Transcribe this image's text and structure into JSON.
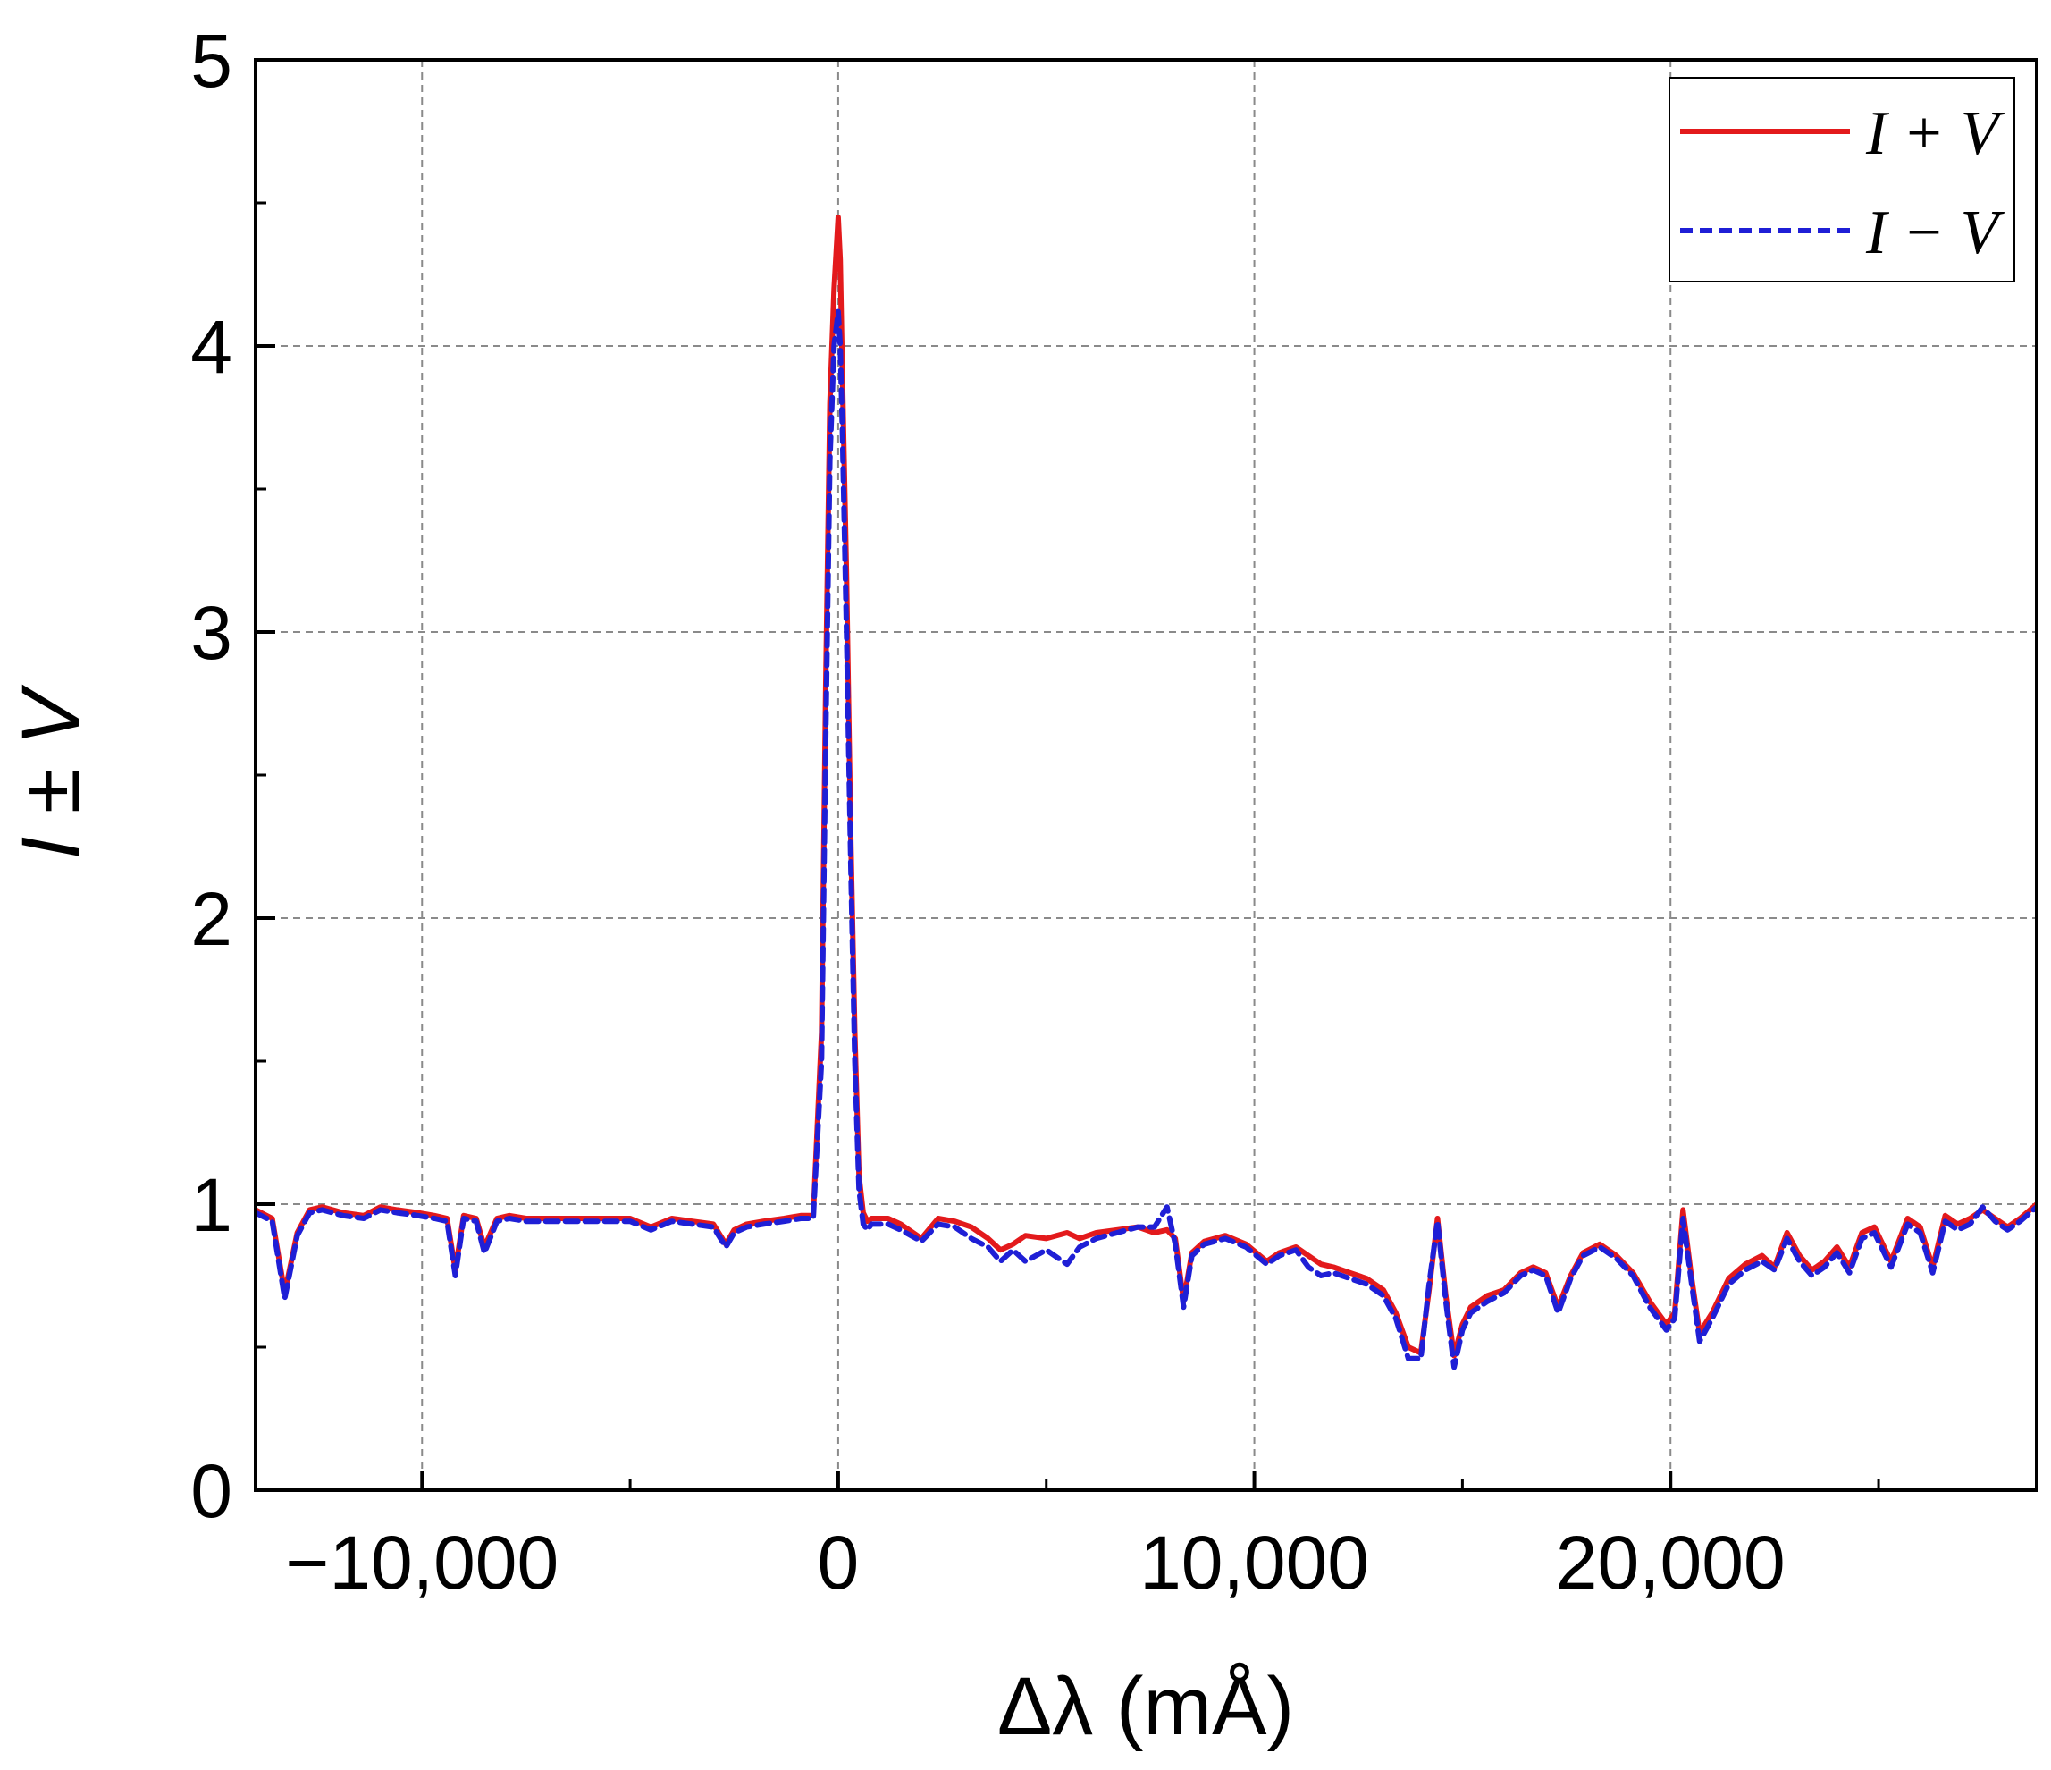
{
  "chart_data": {
    "type": "line",
    "title": "",
    "xlabel": "Δλ (mÅ)",
    "ylabel": "I ± V",
    "xlim": [
      -14000,
      28800
    ],
    "ylim": [
      0,
      5
    ],
    "x_ticks": [
      -10000,
      0,
      10000,
      20000
    ],
    "x_tick_labels": [
      "−10,000",
      "0",
      "10,000",
      "20,000"
    ],
    "y_ticks": [
      0,
      1,
      2,
      3,
      4,
      5
    ],
    "y_tick_labels": [
      "0",
      "1",
      "2",
      "3",
      "4",
      "5"
    ],
    "grid": true,
    "legend_position": "top-right",
    "colors": {
      "I_plus_V": "#e31a1c",
      "I_minus_V": "#1f1fd6"
    },
    "series": [
      {
        "name": "I + V",
        "style": "solid",
        "x": [
          -14000,
          -13600,
          -13300,
          -13000,
          -12700,
          -12400,
          -11900,
          -11400,
          -11000,
          -10600,
          -10100,
          -9700,
          -9400,
          -9200,
          -9000,
          -8700,
          -8500,
          -8200,
          -7900,
          -7500,
          -7000,
          -6000,
          -5000,
          -4500,
          -4000,
          -3500,
          -3000,
          -2700,
          -2500,
          -2200,
          -1800,
          -1300,
          -900,
          -600,
          -400,
          -300,
          -200,
          -100,
          0,
          50,
          100,
          200,
          300,
          400,
          500,
          600,
          700,
          800,
          1000,
          1200,
          1500,
          2000,
          2400,
          2800,
          3200,
          3600,
          3900,
          4200,
          4500,
          5000,
          5500,
          5800,
          6200,
          6700,
          7200,
          7600,
          7900,
          8100,
          8300,
          8500,
          8800,
          9300,
          9800,
          10300,
          10600,
          11000,
          11300,
          11600,
          11900,
          12300,
          12700,
          13100,
          13400,
          13700,
          14000,
          14200,
          14400,
          14600,
          14800,
          15000,
          15200,
          15600,
          16000,
          16400,
          16700,
          17000,
          17300,
          17600,
          17900,
          18300,
          18700,
          19100,
          19500,
          19900,
          20100,
          20300,
          20500,
          20700,
          21000,
          21400,
          21800,
          22200,
          22500,
          22800,
          23100,
          23400,
          23700,
          24000,
          24300,
          24600,
          24900,
          25300,
          25700,
          26000,
          26300,
          26600,
          26900,
          27200,
          27500,
          27800,
          28100,
          28400,
          28800
        ],
        "y": [
          0.98,
          0.95,
          0.69,
          0.9,
          0.98,
          0.99,
          0.97,
          0.96,
          0.99,
          0.98,
          0.97,
          0.96,
          0.95,
          0.77,
          0.96,
          0.95,
          0.85,
          0.95,
          0.96,
          0.95,
          0.95,
          0.95,
          0.95,
          0.92,
          0.95,
          0.94,
          0.93,
          0.86,
          0.91,
          0.93,
          0.94,
          0.95,
          0.96,
          0.96,
          1.6,
          2.8,
          3.8,
          4.2,
          4.45,
          4.3,
          3.9,
          3.2,
          2.3,
          1.6,
          1.1,
          0.97,
          0.94,
          0.95,
          0.95,
          0.95,
          0.93,
          0.88,
          0.95,
          0.94,
          0.92,
          0.88,
          0.84,
          0.86,
          0.89,
          0.88,
          0.9,
          0.88,
          0.9,
          0.91,
          0.92,
          0.9,
          0.91,
          0.88,
          0.66,
          0.83,
          0.87,
          0.89,
          0.86,
          0.8,
          0.83,
          0.85,
          0.82,
          0.79,
          0.78,
          0.76,
          0.74,
          0.7,
          0.62,
          0.5,
          0.48,
          0.7,
          0.95,
          0.68,
          0.47,
          0.58,
          0.64,
          0.68,
          0.7,
          0.76,
          0.78,
          0.76,
          0.64,
          0.75,
          0.83,
          0.86,
          0.82,
          0.76,
          0.66,
          0.58,
          0.62,
          0.98,
          0.75,
          0.55,
          0.62,
          0.74,
          0.79,
          0.82,
          0.78,
          0.9,
          0.82,
          0.77,
          0.8,
          0.85,
          0.78,
          0.9,
          0.92,
          0.8,
          0.95,
          0.92,
          0.78,
          0.96,
          0.93,
          0.95,
          0.98,
          0.95,
          0.92,
          0.95,
          1.0
        ],
        "note_dummy": null
      },
      {
        "name": "I − V",
        "style": "dashed",
        "x": [
          -14000,
          -13600,
          -13300,
          -13000,
          -12700,
          -12400,
          -11900,
          -11400,
          -11000,
          -10600,
          -10100,
          -9700,
          -9400,
          -9200,
          -9000,
          -8700,
          -8500,
          -8200,
          -7900,
          -7500,
          -7000,
          -6000,
          -5000,
          -4500,
          -4000,
          -3500,
          -3000,
          -2700,
          -2500,
          -2200,
          -1800,
          -1300,
          -900,
          -600,
          -400,
          -300,
          -200,
          -100,
          0,
          50,
          100,
          200,
          300,
          400,
          500,
          600,
          700,
          800,
          1000,
          1200,
          1500,
          2000,
          2400,
          2800,
          3200,
          3600,
          3900,
          4200,
          4500,
          5000,
          5500,
          5800,
          6200,
          6700,
          7200,
          7600,
          7900,
          8100,
          8300,
          8500,
          8800,
          9300,
          9800,
          10300,
          10600,
          11000,
          11300,
          11600,
          11900,
          12300,
          12700,
          13100,
          13400,
          13700,
          14000,
          14200,
          14400,
          14600,
          14800,
          15000,
          15200,
          15600,
          16000,
          16400,
          16700,
          17000,
          17300,
          17600,
          17900,
          18300,
          18700,
          19100,
          19500,
          19900,
          20100,
          20300,
          20500,
          20700,
          21000,
          21400,
          21800,
          22200,
          22500,
          22800,
          23100,
          23400,
          23700,
          24000,
          24300,
          24600,
          24900,
          25300,
          25700,
          26000,
          26300,
          26600,
          26900,
          27200,
          27500,
          27800,
          28100,
          28400,
          28800
        ],
        "y": [
          0.97,
          0.94,
          0.67,
          0.89,
          0.97,
          0.98,
          0.96,
          0.95,
          0.98,
          0.97,
          0.96,
          0.95,
          0.94,
          0.75,
          0.95,
          0.94,
          0.83,
          0.94,
          0.95,
          0.94,
          0.94,
          0.94,
          0.94,
          0.91,
          0.94,
          0.93,
          0.92,
          0.85,
          0.9,
          0.92,
          0.93,
          0.94,
          0.95,
          0.95,
          1.5,
          2.6,
          3.6,
          4.0,
          4.12,
          4.0,
          3.7,
          3.0,
          2.2,
          1.5,
          1.05,
          0.93,
          0.91,
          0.93,
          0.93,
          0.93,
          0.91,
          0.87,
          0.93,
          0.92,
          0.88,
          0.85,
          0.8,
          0.84,
          0.8,
          0.84,
          0.79,
          0.85,
          0.88,
          0.9,
          0.92,
          0.92,
          0.99,
          0.86,
          0.64,
          0.82,
          0.86,
          0.88,
          0.85,
          0.79,
          0.82,
          0.84,
          0.78,
          0.75,
          0.76,
          0.74,
          0.72,
          0.68,
          0.6,
          0.46,
          0.46,
          0.72,
          0.94,
          0.66,
          0.43,
          0.56,
          0.62,
          0.66,
          0.69,
          0.75,
          0.77,
          0.75,
          0.62,
          0.74,
          0.82,
          0.85,
          0.81,
          0.75,
          0.64,
          0.56,
          0.6,
          0.95,
          0.73,
          0.52,
          0.6,
          0.72,
          0.77,
          0.8,
          0.77,
          0.88,
          0.8,
          0.75,
          0.78,
          0.83,
          0.76,
          0.88,
          0.9,
          0.78,
          0.93,
          0.9,
          0.76,
          0.94,
          0.91,
          0.93,
          0.99,
          0.94,
          0.91,
          0.94,
          0.99
        ]
      }
    ]
  }
}
